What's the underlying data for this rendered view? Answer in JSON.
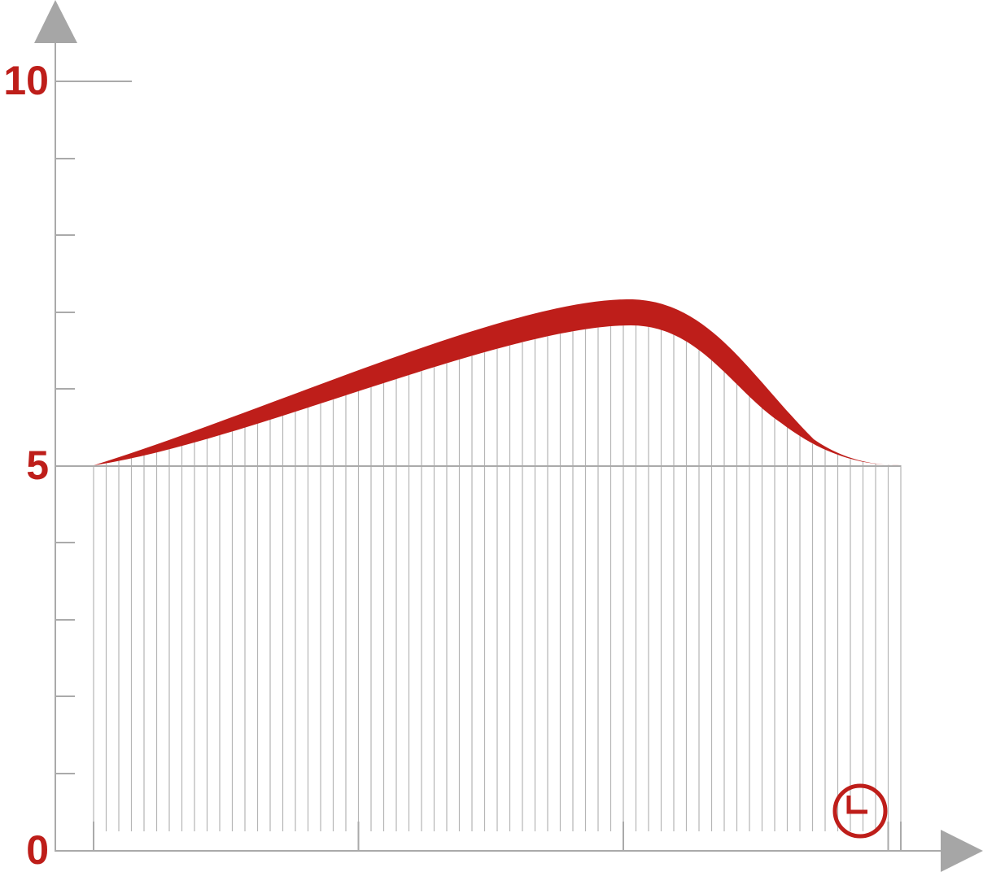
{
  "chart_data": {
    "type": "band",
    "ylim": [
      0,
      10
    ],
    "yticks": [
      0,
      5,
      10
    ],
    "color": "#be1e1a"
  }
}
